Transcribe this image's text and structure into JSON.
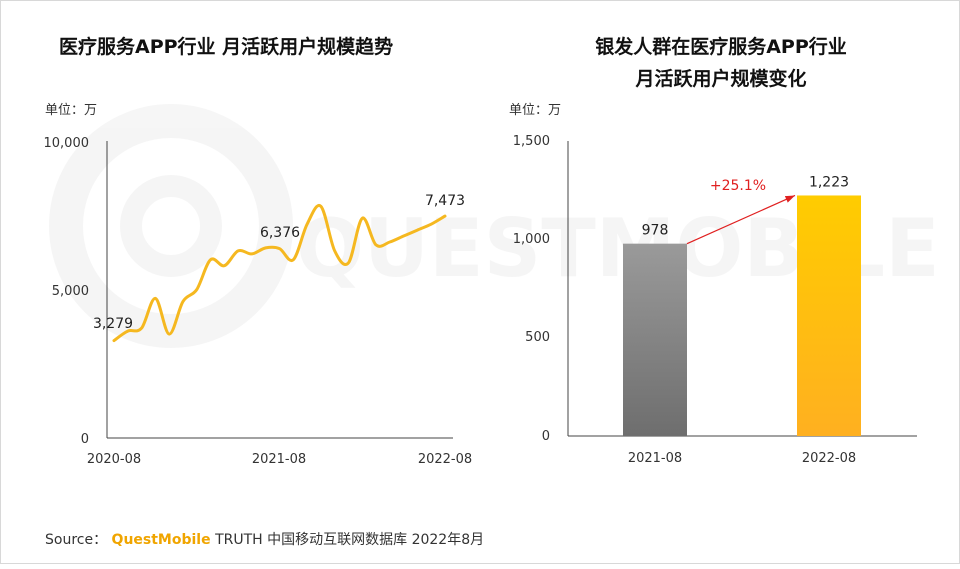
{
  "left_chart": {
    "title": "医疗服务APP行业 月活跃用户规模趋势",
    "unit": "单位：万",
    "yticks": [
      "10,000",
      "5,000",
      "0"
    ],
    "xticks": [
      "2020-08",
      "2021-08",
      "2022-08"
    ],
    "point_labels": [
      "3,279",
      "6,376",
      "7,473"
    ]
  },
  "right_chart": {
    "title_line1": "银发人群在医疗服务APP行业",
    "title_line2": "月活跃用户规模变化",
    "unit": "单位：万",
    "yticks": [
      "1,500",
      "1,000",
      "500",
      "0"
    ],
    "categories": [
      "2021-08",
      "2022-08"
    ],
    "value_labels": [
      "978",
      "1,223"
    ],
    "growth_label": "+25.1%"
  },
  "source": {
    "prefix": "Source：",
    "brand": "QuestMobile",
    "text": "TRUTH 中国移动互联网数据库 2022年8月"
  },
  "colors": {
    "line": "#f5b820",
    "bar_2021": "#8a8a8a",
    "bar_2022": "#ffc000",
    "growth": "#e02020"
  },
  "chart_data": [
    {
      "type": "line",
      "title": "医疗服务APP行业 月活跃用户规模趋势",
      "ylabel": "单位：万",
      "ylim": [
        0,
        10000
      ],
      "x": [
        "2020-08",
        "2020-09",
        "2020-10",
        "2020-11",
        "2020-12",
        "2021-01",
        "2021-02",
        "2021-03",
        "2021-04",
        "2021-05",
        "2021-06",
        "2021-07",
        "2021-08",
        "2021-09",
        "2021-10",
        "2021-11",
        "2021-12",
        "2022-01",
        "2022-02",
        "2022-03",
        "2022-04",
        "2022-05",
        "2022-06",
        "2022-07",
        "2022-08"
      ],
      "series": [
        {
          "values": [
            3279,
            3600,
            3700,
            4700,
            3500,
            4600,
            5000,
            6000,
            5800,
            6300,
            6200,
            6400,
            6376,
            6000,
            7200,
            7800,
            6300,
            5900,
            7400,
            6500,
            6600,
            6800,
            7000,
            7200,
            7473
          ]
        }
      ],
      "labeled_points": {
        "2020-08": 3279,
        "2021-08": 6376,
        "2022-08": 7473
      },
      "grid": false
    },
    {
      "type": "bar",
      "title": "银发人群在医疗服务APP行业 月活跃用户规模变化",
      "ylabel": "单位：万",
      "ylim": [
        0,
        1500
      ],
      "categories": [
        "2021-08",
        "2022-08"
      ],
      "values": [
        978,
        1223
      ],
      "annotations": [
        "+25.1%"
      ],
      "grid": false
    }
  ]
}
